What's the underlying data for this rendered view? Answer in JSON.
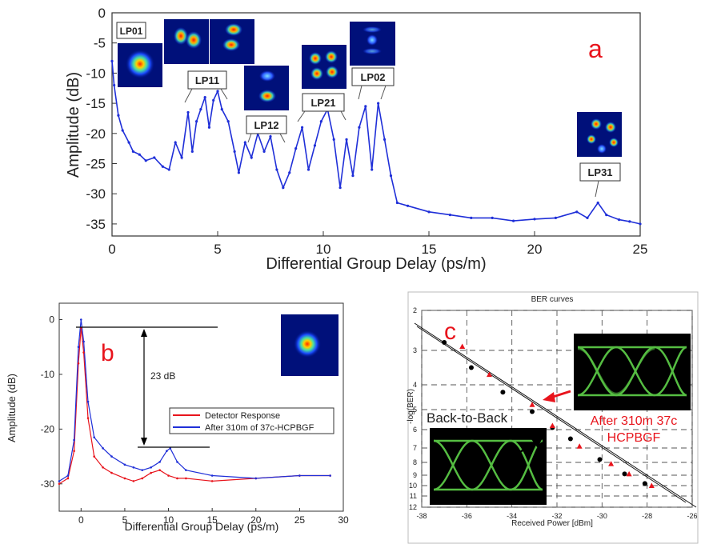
{
  "colors": {
    "blue": "#1f2fd8",
    "red": "#e8141c",
    "black": "#000000",
    "eye_green": "#5fd24a",
    "panel_label_red": "#e8141c"
  },
  "chart_data": [
    {
      "panel_letter": "a",
      "type": "line",
      "xlabel": "Differential Group Delay (ps/m)",
      "ylabel": "Amplitude (dB)",
      "xlim": [
        0,
        25
      ],
      "ylim": [
        -37,
        0
      ],
      "xticks": [
        "0",
        "5",
        "10",
        "15",
        "20",
        "25"
      ],
      "yticks": [
        "0",
        "-5",
        "-10",
        "-15",
        "-20",
        "-25",
        "-30",
        "-35"
      ],
      "grid": false,
      "series": [
        {
          "color": "blue",
          "x": [
            0.0,
            0.1,
            0.3,
            0.5,
            0.8,
            1.0,
            1.3,
            1.6,
            2.0,
            2.4,
            2.7,
            3.0,
            3.3,
            3.6,
            3.8,
            4.0,
            4.2,
            4.4,
            4.6,
            4.8,
            5.0,
            5.2,
            5.5,
            5.8,
            6.0,
            6.3,
            6.6,
            6.9,
            7.2,
            7.5,
            7.8,
            8.1,
            8.4,
            8.7,
            9.0,
            9.3,
            9.6,
            9.9,
            10.2,
            10.5,
            10.8,
            11.1,
            11.4,
            11.7,
            12.0,
            12.3,
            12.6,
            12.9,
            13.2,
            13.5,
            14.0,
            15.0,
            16.0,
            17.0,
            18.0,
            19.0,
            20.0,
            21.0,
            22.0,
            22.5,
            23.0,
            23.4,
            24.0,
            24.5,
            25.0
          ],
          "y": [
            -8.0,
            -12.0,
            -17.0,
            -19.5,
            -21.5,
            -23.0,
            -23.5,
            -24.5,
            -24.0,
            -25.5,
            -26.0,
            -21.5,
            -24.0,
            -16.5,
            -23.0,
            -18.0,
            -16.0,
            -14.0,
            -19.0,
            -14.5,
            -13.0,
            -16.0,
            -18.0,
            -23.0,
            -26.5,
            -21.5,
            -24.0,
            -20.0,
            -23.0,
            -20.5,
            -26.0,
            -29.0,
            -26.5,
            -22.5,
            -19.0,
            -26.0,
            -22.0,
            -18.0,
            -16.0,
            -21.0,
            -29.0,
            -21.0,
            -27.0,
            -19.0,
            -15.5,
            -26.0,
            -15.0,
            -21.0,
            -27.0,
            -31.5,
            -32.0,
            -33.0,
            -33.5,
            -34.0,
            -34.0,
            -34.5,
            -34.2,
            -34.0,
            -33.0,
            -34.0,
            -31.5,
            -33.5,
            -34.3,
            -34.6,
            -35.0
          ]
        }
      ],
      "mode_labels": [
        "LP01",
        "LP11",
        "LP12",
        "LP21",
        "LP02",
        "LP31"
      ]
    },
    {
      "panel_letter": "b",
      "type": "line",
      "xlabel": "Differential Group Delay (ps/m)",
      "ylabel": "Amplitude (dB)",
      "xlim": [
        -2.5,
        30
      ],
      "ylim": [
        -35,
        3
      ],
      "xticks": [
        "0",
        "5",
        "10",
        "15",
        "20",
        "25",
        "30"
      ],
      "yticks": [
        "0",
        "-10",
        "-20",
        "-30"
      ],
      "grid": false,
      "legend_position": "middle-right",
      "annotation": "23 dB",
      "series": [
        {
          "name": "Detector Response",
          "color": "red",
          "x": [
            -2.5,
            -1.5,
            -0.8,
            -0.3,
            0.0,
            0.3,
            0.8,
            1.5,
            2.5,
            3.5,
            5.0,
            6.0,
            7.0,
            8.0,
            9.0,
            10.0,
            11.0,
            12.0,
            15.0,
            20.0,
            25.0,
            28.5
          ],
          "y": [
            -30.0,
            -29.0,
            -24.0,
            -8.0,
            -1.5,
            -6.0,
            -18.0,
            -25.0,
            -27.0,
            -28.0,
            -29.0,
            -29.5,
            -29.0,
            -28.0,
            -27.5,
            -28.5,
            -29.0,
            -29.0,
            -29.5,
            -29.0,
            -28.5,
            -28.5
          ]
        },
        {
          "name": "After 310m of 37c-HCPBGF",
          "color": "blue",
          "x": [
            -2.5,
            -1.5,
            -0.8,
            -0.3,
            0.0,
            0.3,
            0.8,
            1.5,
            2.5,
            3.5,
            5.0,
            6.0,
            7.0,
            8.0,
            9.0,
            9.8,
            10.2,
            11.0,
            12.0,
            15.0,
            20.0,
            25.0,
            28.5
          ],
          "y": [
            -29.5,
            -28.5,
            -22.0,
            -5.0,
            0.0,
            -4.0,
            -15.0,
            -21.5,
            -23.5,
            -25.0,
            -26.5,
            -27.0,
            -27.5,
            -27.0,
            -26.0,
            -24.0,
            -23.5,
            -26.0,
            -27.5,
            -28.5,
            -29.0,
            -28.5,
            -28.5
          ]
        }
      ]
    },
    {
      "panel_letter": "c",
      "type": "scatter",
      "title": "BER curves",
      "xlabel": "Received Power [dBm]",
      "ylabel": "-log(BER)",
      "xlim": [
        -38,
        -26
      ],
      "ylim": [
        2,
        12
      ],
      "y_scale": "log-of-log (BER)",
      "xticks": [
        "-38",
        "-36",
        "-34",
        "-32",
        "-30",
        "-28",
        "-26"
      ],
      "yticks": [
        "2",
        "3",
        "4",
        "5",
        "6",
        "7",
        "8",
        "9",
        "10",
        "11",
        "12"
      ],
      "grid": true,
      "series": [
        {
          "name": "Back-to-Back",
          "color": "black",
          "marker": "circle",
          "x": [
            -37.0,
            -35.8,
            -34.4,
            -33.1,
            -32.2,
            -31.4,
            -30.1,
            -29.0,
            -28.1
          ],
          "y": [
            2.8,
            3.5,
            4.3,
            5.1,
            5.9,
            6.5,
            7.8,
            8.9,
            9.8
          ]
        },
        {
          "name": "After 310m 37c HCPBGF",
          "color": "red",
          "marker": "triangle",
          "x": [
            -36.2,
            -35.0,
            -33.1,
            -32.2,
            -31.0,
            -29.6,
            -28.8,
            -27.8
          ],
          "y": [
            2.9,
            3.7,
            4.8,
            5.8,
            6.9,
            8.1,
            8.9,
            10.0
          ]
        }
      ],
      "inset_labels": [
        "Back-to-Back",
        "After 310m 37c HCPBGF"
      ]
    }
  ],
  "text": {
    "a": {
      "letter": "a",
      "xlabel": "Differential Group Delay (ps/m)",
      "ylabel": "Amplitude (dB)",
      "modes": [
        "LP01",
        "LP11",
        "LP12",
        "LP21",
        "LP02",
        "LP31"
      ]
    },
    "b": {
      "letter": "b",
      "xlabel": "Differential Group Delay (ps/m)",
      "ylabel": "Amplitude (dB)",
      "annotation": "23 dB",
      "legend": [
        "Detector Response",
        "After 310m of 37c-HCPBGF"
      ]
    },
    "c": {
      "letter": "c",
      "title": "BER curves",
      "xlabel": "Received Power [dBm]",
      "ylabel": "-log(BER)",
      "b2b": "Back-to-Back",
      "after_line1": "After 310m 37c",
      "after_line2": "HCPBGF"
    }
  }
}
